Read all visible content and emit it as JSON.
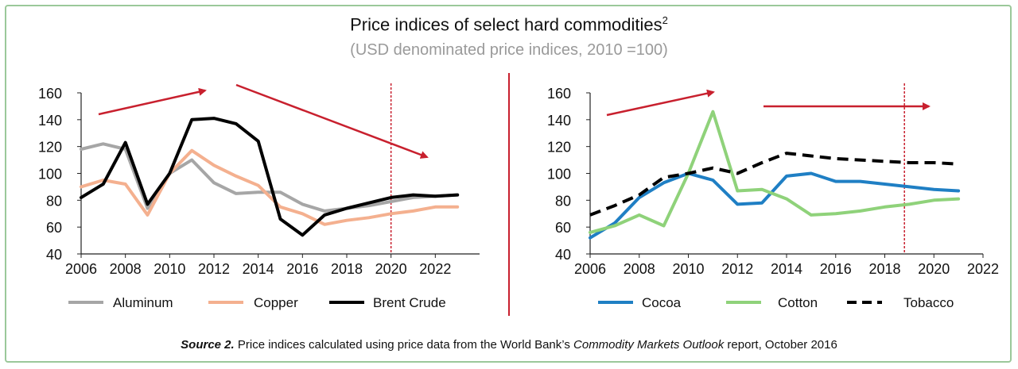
{
  "title": "Price indices of select hard commodities",
  "title_sup": "2",
  "subtitle": "(USD denominated price indices, 2010 =100)",
  "source": {
    "lead": "Source 2.",
    "text_before": " Price indices calculated using price data from the World Bank’s ",
    "publication": "Commodity Markets Outlook",
    "text_after": " report, October 2016"
  },
  "colors": {
    "aluminum": "#a6a6a6",
    "copper": "#f4b08f",
    "brent": "#000000",
    "cocoa": "#1f7fc4",
    "cotton": "#8fd27a",
    "tobacco": "#000000",
    "arrow": "#c8202e",
    "divider": "#c8202e",
    "frame": "#9bc89a"
  },
  "chart_data": [
    {
      "type": "line",
      "ylim": [
        40,
        160
      ],
      "yticks": [
        40,
        60,
        80,
        100,
        120,
        140,
        160
      ],
      "xlim": [
        2006,
        2024
      ],
      "xticks": [
        2006,
        2008,
        2010,
        2012,
        2014,
        2016,
        2018,
        2020,
        2022
      ],
      "vline": 2020,
      "series": [
        {
          "name": "Aluminum",
          "color": "aluminum",
          "dash": false,
          "x": [
            2006,
            2007,
            2008,
            2009,
            2010,
            2011,
            2012,
            2013,
            2014,
            2015,
            2016,
            2017,
            2018,
            2019,
            2020,
            2021,
            2022,
            2023
          ],
          "y": [
            118,
            122,
            118,
            74,
            100,
            110,
            93,
            85,
            86,
            86,
            77,
            72,
            74,
            76,
            79,
            82,
            83,
            84
          ]
        },
        {
          "name": "Copper",
          "color": "copper",
          "dash": false,
          "x": [
            2006,
            2007,
            2008,
            2009,
            2010,
            2011,
            2012,
            2013,
            2014,
            2015,
            2016,
            2017,
            2018,
            2019,
            2020,
            2021,
            2022,
            2023
          ],
          "y": [
            90,
            95,
            92,
            69,
            100,
            117,
            106,
            98,
            91,
            75,
            70,
            62,
            65,
            67,
            70,
            72,
            75,
            75
          ]
        },
        {
          "name": "Brent Crude",
          "color": "brent",
          "dash": false,
          "x": [
            2006,
            2007,
            2008,
            2009,
            2010,
            2011,
            2012,
            2013,
            2014,
            2015,
            2016,
            2017,
            2018,
            2019,
            2020,
            2021,
            2022,
            2023
          ],
          "y": [
            82,
            92,
            123,
            77,
            100,
            140,
            141,
            137,
            124,
            66,
            54,
            69,
            74,
            78,
            82,
            84,
            83,
            84
          ]
        }
      ]
    },
    {
      "type": "line",
      "ylim": [
        40,
        160
      ],
      "yticks": [
        40,
        60,
        80,
        100,
        120,
        140,
        160
      ],
      "xlim": [
        2006,
        2022
      ],
      "xticks": [
        2006,
        2008,
        2010,
        2012,
        2014,
        2016,
        2018,
        2020,
        2022
      ],
      "vline": 2018.8,
      "series": [
        {
          "name": "Cocoa",
          "color": "cocoa",
          "dash": false,
          "x": [
            2006,
            2007,
            2008,
            2009,
            2010,
            2011,
            2012,
            2013,
            2014,
            2015,
            2016,
            2017,
            2018,
            2019,
            2020,
            2021
          ],
          "y": [
            52,
            63,
            82,
            93,
            100,
            95,
            77,
            78,
            98,
            100,
            94,
            94,
            92,
            90,
            88,
            87
          ]
        },
        {
          "name": "Cotton",
          "color": "cotton",
          "dash": false,
          "x": [
            2006,
            2007,
            2008,
            2009,
            2010,
            2011,
            2012,
            2013,
            2014,
            2015,
            2016,
            2017,
            2018,
            2019,
            2020,
            2021
          ],
          "y": [
            56,
            61,
            69,
            61,
            100,
            146,
            87,
            88,
            81,
            69,
            70,
            72,
            75,
            77,
            80,
            81
          ]
        },
        {
          "name": "Tobacco",
          "color": "tobacco",
          "dash": true,
          "x": [
            2006,
            2007,
            2008,
            2009,
            2010,
            2011,
            2012,
            2013,
            2014,
            2015,
            2016,
            2017,
            2018,
            2019,
            2020,
            2021
          ],
          "y": [
            69,
            76,
            84,
            97,
            100,
            104,
            100,
            108,
            115,
            113,
            111,
            110,
            109,
            108,
            108,
            107
          ]
        }
      ]
    }
  ]
}
